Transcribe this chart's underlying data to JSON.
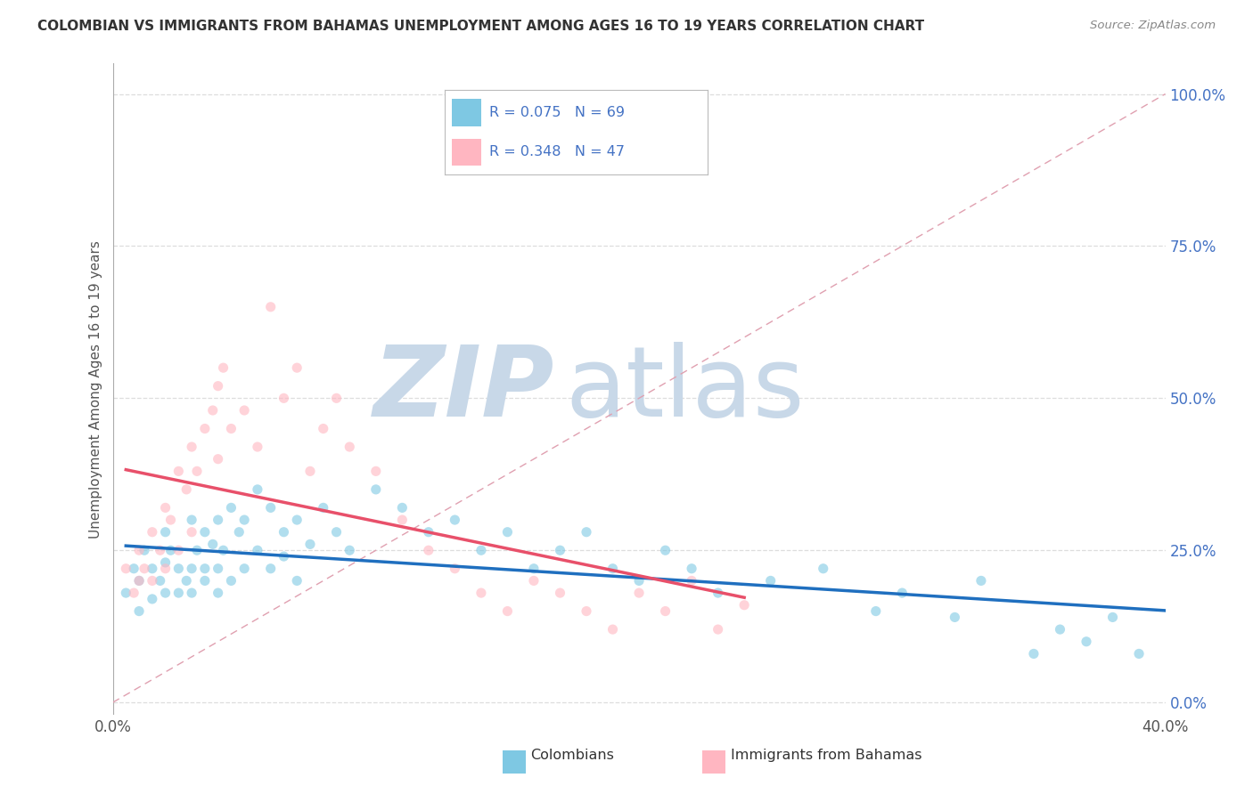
{
  "title": "COLOMBIAN VS IMMIGRANTS FROM BAHAMAS UNEMPLOYMENT AMONG AGES 16 TO 19 YEARS CORRELATION CHART",
  "source": "Source: ZipAtlas.com",
  "ylabel": "Unemployment Among Ages 16 to 19 years",
  "xlim": [
    0.0,
    0.4
  ],
  "ylim": [
    -0.02,
    1.05
  ],
  "yticks_right": [
    0.0,
    0.25,
    0.5,
    0.75,
    1.0
  ],
  "ytick_labels_right": [
    "0.0%",
    "25.0%",
    "50.0%",
    "75.0%",
    "100.0%"
  ],
  "xtick_positions": [
    0.0,
    0.4
  ],
  "xtick_labels": [
    "0.0%",
    "40.0%"
  ],
  "colombians_R": 0.075,
  "colombians_N": 69,
  "bahamas_R": 0.348,
  "bahamas_N": 47,
  "scatter_alpha": 0.6,
  "scatter_size": 65,
  "colombian_color": "#7ec8e3",
  "bahamas_color": "#ffb6c1",
  "colombian_scatter_color": "#7ec8e3",
  "bahamas_scatter_color": "#ffb6c1",
  "colombian_line_color": "#1f6fbf",
  "bahamas_line_color": "#e8506a",
  "legend_label_colombians": "Colombians",
  "legend_label_bahamas": "Immigrants from Bahamas",
  "watermark_zip": "ZIP",
  "watermark_atlas": "atlas",
  "watermark_color": "#c8d8e8",
  "diag_line_color": "#e0a0b0",
  "grid_color": "#dddddd",
  "axis_label_color": "#4472c4",
  "title_color": "#333333",
  "source_color": "#888888",
  "colombians_x": [
    0.005,
    0.008,
    0.01,
    0.01,
    0.012,
    0.015,
    0.015,
    0.018,
    0.02,
    0.02,
    0.02,
    0.022,
    0.025,
    0.025,
    0.028,
    0.03,
    0.03,
    0.03,
    0.032,
    0.035,
    0.035,
    0.035,
    0.038,
    0.04,
    0.04,
    0.04,
    0.042,
    0.045,
    0.045,
    0.048,
    0.05,
    0.05,
    0.055,
    0.055,
    0.06,
    0.06,
    0.065,
    0.065,
    0.07,
    0.07,
    0.075,
    0.08,
    0.085,
    0.09,
    0.1,
    0.11,
    0.12,
    0.13,
    0.14,
    0.15,
    0.16,
    0.17,
    0.18,
    0.19,
    0.2,
    0.21,
    0.22,
    0.23,
    0.25,
    0.27,
    0.29,
    0.3,
    0.32,
    0.33,
    0.35,
    0.36,
    0.37,
    0.38,
    0.39
  ],
  "colombians_y": [
    0.18,
    0.22,
    0.2,
    0.15,
    0.25,
    0.17,
    0.22,
    0.2,
    0.28,
    0.18,
    0.23,
    0.25,
    0.22,
    0.18,
    0.2,
    0.3,
    0.22,
    0.18,
    0.25,
    0.28,
    0.2,
    0.22,
    0.26,
    0.3,
    0.22,
    0.18,
    0.25,
    0.32,
    0.2,
    0.28,
    0.3,
    0.22,
    0.35,
    0.25,
    0.32,
    0.22,
    0.28,
    0.24,
    0.3,
    0.2,
    0.26,
    0.32,
    0.28,
    0.25,
    0.35,
    0.32,
    0.28,
    0.3,
    0.25,
    0.28,
    0.22,
    0.25,
    0.28,
    0.22,
    0.2,
    0.25,
    0.22,
    0.18,
    0.2,
    0.22,
    0.15,
    0.18,
    0.14,
    0.2,
    0.08,
    0.12,
    0.1,
    0.14,
    0.08
  ],
  "bahamas_x": [
    0.005,
    0.008,
    0.01,
    0.01,
    0.012,
    0.015,
    0.015,
    0.018,
    0.02,
    0.02,
    0.022,
    0.025,
    0.025,
    0.028,
    0.03,
    0.03,
    0.032,
    0.035,
    0.038,
    0.04,
    0.04,
    0.042,
    0.045,
    0.05,
    0.055,
    0.06,
    0.065,
    0.07,
    0.075,
    0.08,
    0.085,
    0.09,
    0.1,
    0.11,
    0.12,
    0.13,
    0.14,
    0.15,
    0.16,
    0.17,
    0.18,
    0.19,
    0.2,
    0.21,
    0.22,
    0.23,
    0.24
  ],
  "bahamas_y": [
    0.22,
    0.18,
    0.25,
    0.2,
    0.22,
    0.28,
    0.2,
    0.25,
    0.32,
    0.22,
    0.3,
    0.38,
    0.25,
    0.35,
    0.42,
    0.28,
    0.38,
    0.45,
    0.48,
    0.52,
    0.4,
    0.55,
    0.45,
    0.48,
    0.42,
    0.65,
    0.5,
    0.55,
    0.38,
    0.45,
    0.5,
    0.42,
    0.38,
    0.3,
    0.25,
    0.22,
    0.18,
    0.15,
    0.2,
    0.18,
    0.15,
    0.12,
    0.18,
    0.15,
    0.2,
    0.12,
    0.16
  ]
}
